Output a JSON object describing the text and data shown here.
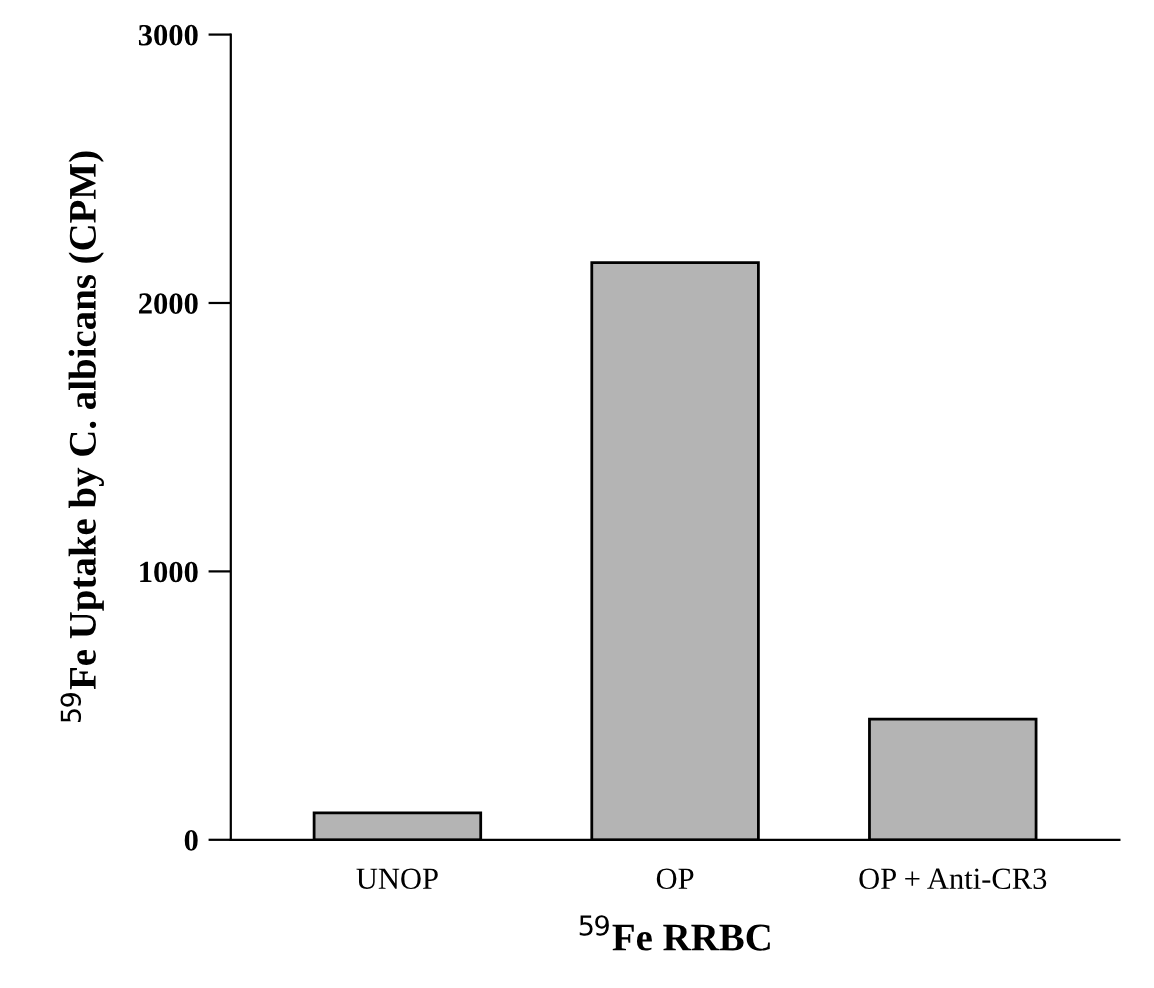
{
  "chart_data": {
    "type": "bar",
    "xlabel": "$^{59}$Fe RRBC",
    "ylabel": "$^{59}$Fe Uptake by C. albicans (CPM)",
    "categories": [
      "UNOP",
      "OP",
      "OP + Anti-CR3"
    ],
    "values": [
      100,
      2150,
      450
    ],
    "color": "#b4b4b4",
    "ylim": [
      0,
      3000
    ],
    "yticks": [
      0,
      1000,
      2000,
      3000
    ],
    "grid": false
  }
}
